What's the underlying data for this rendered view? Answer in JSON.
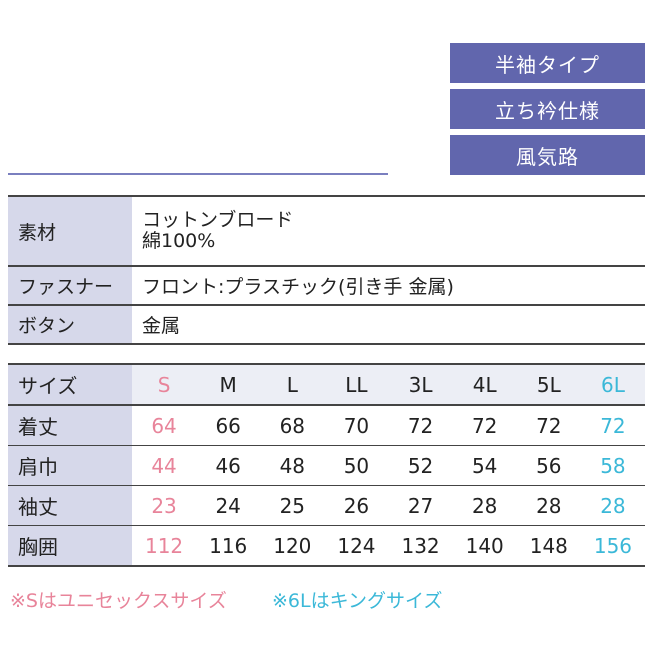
{
  "badges": [
    "半袖タイプ",
    "立ち衿仕様",
    "風気路"
  ],
  "specs": [
    {
      "label": "素材",
      "value": [
        "コットンブロード",
        "綿100%"
      ]
    },
    {
      "label": "ファスナー",
      "value": [
        "フロント:プラスチック(引き手 金属)"
      ]
    },
    {
      "label": "ボタン",
      "value": [
        "金属"
      ]
    }
  ],
  "size_table": {
    "header_label": "サイズ",
    "sizes": [
      "S",
      "M",
      "L",
      "LL",
      "3L",
      "4L",
      "5L",
      "6L"
    ],
    "rows": [
      {
        "label": "着丈",
        "values": [
          "64",
          "66",
          "68",
          "70",
          "72",
          "72",
          "72",
          "72"
        ]
      },
      {
        "label": "肩巾",
        "values": [
          "44",
          "46",
          "48",
          "50",
          "52",
          "54",
          "56",
          "58"
        ]
      },
      {
        "label": "袖丈",
        "values": [
          "23",
          "24",
          "25",
          "26",
          "27",
          "28",
          "28",
          "28"
        ]
      },
      {
        "label": "胸囲",
        "values": [
          "112",
          "116",
          "120",
          "124",
          "132",
          "140",
          "148",
          "156"
        ]
      }
    ]
  },
  "notes": {
    "unisex": "※Sはユニセックスサイズ",
    "king": "※6Lはキングサイズ"
  },
  "colors": {
    "badge": "#6166ad",
    "label_bg": "#d6d8ea",
    "unisex": "#e8849a",
    "king": "#3bb8d8"
  }
}
